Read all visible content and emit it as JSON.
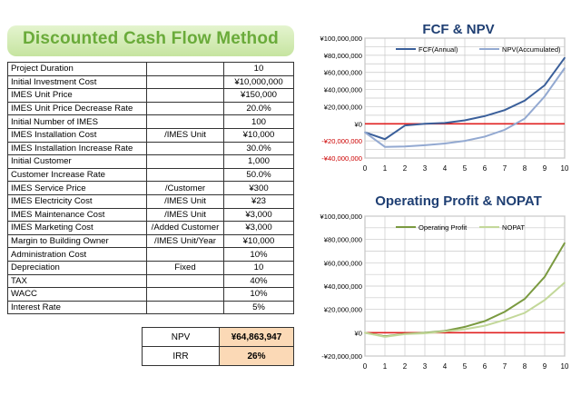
{
  "title": "Discounted Cash Flow Method",
  "params": [
    {
      "label": "Project Duration",
      "unit": "",
      "value": "10"
    },
    {
      "label": "Initial Investment Cost",
      "unit": "",
      "value": "¥10,000,000"
    },
    {
      "label": "IMES Unit Price",
      "unit": "",
      "value": "¥150,000"
    },
    {
      "label": "IMES Unit Price Decrease Rate",
      "unit": "",
      "value": "20.0%"
    },
    {
      "label": "Initial Number of IMES",
      "unit": "",
      "value": "100"
    },
    {
      "label": "IMES Installation Cost",
      "unit": "/IMES Unit",
      "value": "¥10,000"
    },
    {
      "label": "IMES Installation Increase Rate",
      "unit": "",
      "value": "30.0%"
    },
    {
      "label": "Initial Customer",
      "unit": "",
      "value": "1,000"
    },
    {
      "label": "Customer Increase Rate",
      "unit": "",
      "value": "50.0%"
    },
    {
      "label": "IMES Service Price",
      "unit": "/Customer",
      "value": "¥300"
    },
    {
      "label": "IMES Electricity Cost",
      "unit": "/IMES Unit",
      "value": "¥23"
    },
    {
      "label": "IMES Maintenance Cost",
      "unit": "/IMES Unit",
      "value": "¥3,000"
    },
    {
      "label": "IMES Marketing Cost",
      "unit": "/Added Customer",
      "value": "¥3,000"
    },
    {
      "label": "Margin to Building Owner",
      "unit": "/IMES Unit/Year",
      "value": "¥10,000"
    },
    {
      "label": "Administration Cost",
      "unit": "",
      "value": "10%"
    },
    {
      "label": "Depreciation",
      "unit": "Fixed",
      "value": "10"
    },
    {
      "label": "TAX",
      "unit": "",
      "value": "40%"
    },
    {
      "label": "WACC",
      "unit": "",
      "value": "10%"
    },
    {
      "label": "Interest Rate",
      "unit": "",
      "value": "5%"
    }
  ],
  "summary": {
    "npv_label": "NPV",
    "npv_value": "¥64,863,947",
    "irr_label": "IRR",
    "irr_value": "26%"
  },
  "chart_data": [
    {
      "type": "line",
      "title": "FCF & NPV",
      "x": [
        0,
        1,
        2,
        3,
        4,
        5,
        6,
        7,
        8,
        9,
        10
      ],
      "ylim": [
        -40000000,
        100000000
      ],
      "y_ticks": [
        -40000000,
        -20000000,
        0,
        20000000,
        40000000,
        60000000,
        80000000,
        100000000
      ],
      "y_tick_labels": [
        "-¥40,000,000",
        "-¥20,000,000",
        "¥0",
        "¥20,000,000",
        "¥40,000,000",
        "¥60,000,000",
        "¥80,000,000",
        "¥100,000,000"
      ],
      "negative_tick_color": "#cc0000",
      "zero_line_color": "#e02020",
      "legend_position": "top",
      "series": [
        {
          "name": "FCF(Annual)",
          "color": "#3a5f9a",
          "values": [
            -10000000,
            -18000000,
            -2000000,
            0,
            1000000,
            4000000,
            9000000,
            16000000,
            27000000,
            45000000,
            77000000
          ]
        },
        {
          "name": "NPV(Accumulated)",
          "color": "#93a9d1",
          "values": [
            -10000000,
            -27000000,
            -26500000,
            -25000000,
            -23000000,
            -20000000,
            -15000000,
            -7000000,
            6000000,
            32000000,
            65000000
          ]
        }
      ]
    },
    {
      "type": "line",
      "title": "Operating Profit & NOPAT",
      "x": [
        0,
        1,
        2,
        3,
        4,
        5,
        6,
        7,
        8,
        9,
        10
      ],
      "ylim": [
        -20000000,
        100000000
      ],
      "y_ticks": [
        -20000000,
        0,
        20000000,
        40000000,
        60000000,
        80000000,
        100000000
      ],
      "y_tick_labels": [
        "-¥20,000,000",
        "¥0",
        "¥20,000,000",
        "¥40,000,000",
        "¥60,000,000",
        "¥80,000,000",
        "¥100,000,000"
      ],
      "negative_tick_color": "#000000",
      "zero_line_color": "#e02020",
      "legend_position": "top",
      "series": [
        {
          "name": "Operating Profit",
          "color": "#7a9a40",
          "values": [
            0,
            -3000000,
            -1000000,
            0,
            1500000,
            5000000,
            10000000,
            18000000,
            29000000,
            48000000,
            77000000
          ]
        },
        {
          "name": "NOPAT",
          "color": "#c3d89a",
          "values": [
            0,
            -3500000,
            -1200000,
            -500000,
            1000000,
            3000000,
            6000000,
            11000000,
            17000000,
            28000000,
            43000000
          ]
        }
      ]
    }
  ]
}
